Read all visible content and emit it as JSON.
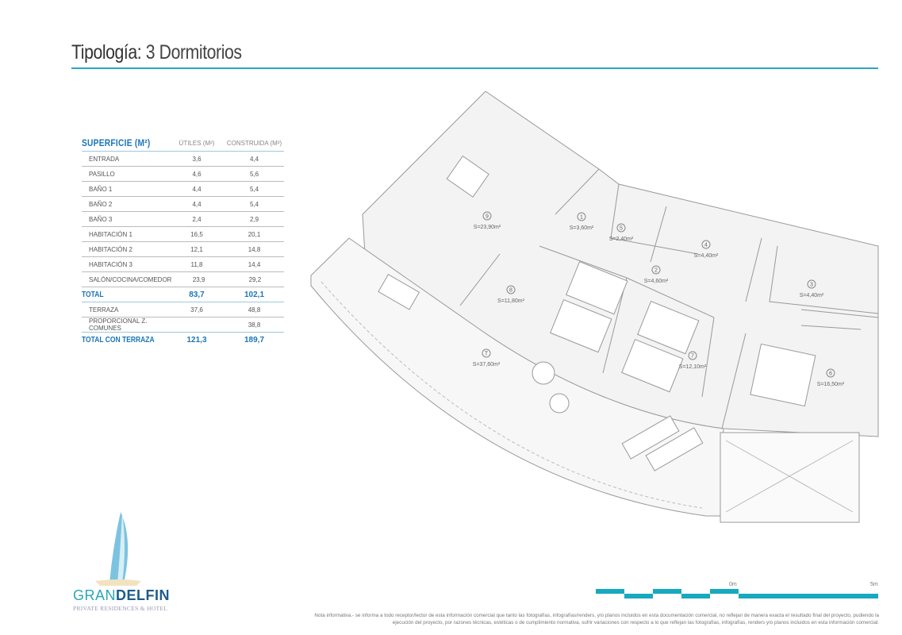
{
  "header": {
    "title_bold": "Tipología:",
    "title_rest": "3 Dormitorios"
  },
  "accent_color": "#2aa6c4",
  "table": {
    "heading": "SUPERFICIE (M²)",
    "col_utiles": "ÚTILES (M²)",
    "col_construida": "CONSTRUIDA (M²)",
    "rows": [
      {
        "label": "ENTRADA",
        "utiles": "3,6",
        "construida": "4,4"
      },
      {
        "label": "PASILLO",
        "utiles": "4,6",
        "construida": "5,6"
      },
      {
        "label": "BAÑO 1",
        "utiles": "4,4",
        "construida": "5,4"
      },
      {
        "label": "BAÑO 2",
        "utiles": "4,4",
        "construida": "5,4"
      },
      {
        "label": "BAÑO 3",
        "utiles": "2,4",
        "construida": "2,9"
      },
      {
        "label": "HABITACIÓN 1",
        "utiles": "16,5",
        "construida": "20,1"
      },
      {
        "label": "HABITACIÓN 2",
        "utiles": "12,1",
        "construida": "14,8"
      },
      {
        "label": "HABITACIÓN 3",
        "utiles": "11,8",
        "construida": "14,4"
      },
      {
        "label": "SALÓN/COCINA/COMEDOR",
        "utiles": "23,9",
        "construida": "29,2"
      }
    ],
    "total": {
      "label": "TOTAL",
      "utiles": "83,7",
      "construida": "102,1"
    },
    "extra_rows": [
      {
        "label": "TERRAZA",
        "utiles": "37,6",
        "construida": "48,8"
      },
      {
        "label": "PROPORCIONAL Z. COMUNES",
        "utiles": "",
        "construida": "38,8"
      }
    ],
    "grand_total": {
      "label": "TOTAL CON TERRAZA",
      "utiles": "121,3",
      "construida": "189,7"
    }
  },
  "plan": {
    "rooms": [
      {
        "num": "9",
        "area": "S=23,90m²"
      },
      {
        "num": "1",
        "area": "S=3,60m²"
      },
      {
        "num": "5",
        "area": "S=2,40m²"
      },
      {
        "num": "4",
        "area": "S=4,40m²"
      },
      {
        "num": "2",
        "area": "S=4,60m²"
      },
      {
        "num": "3",
        "area": "S=4,40m²"
      },
      {
        "num": "8",
        "area": "S=11,80m²"
      },
      {
        "num": "7",
        "area": "S=12,10m²"
      },
      {
        "num": "6",
        "area": "S=16,50m²"
      },
      {
        "num": "T",
        "area": "S=37,60m²"
      }
    ]
  },
  "scale": {
    "start": "0m",
    "end": "5m"
  },
  "logo": {
    "brand_a": "GRAN",
    "brand_b": "DELFIN",
    "tagline": "PRIVATE RESIDENCES & HOTEL"
  },
  "note": "Nota informativa.- se informa a todo receptor/lector de esta información comercial que tanto las fotografías, infografías/renders, y/o planos incluidos en esta documentación comercial, no reflejan de manera exacta el resultado final del proyecto, pudiendo la ejecución del proyecto, por razones técnicas, estéticas o de cumplimiento normativa, sufrir variaciones con respecto a lo que reflejan las fotografías, infografías, renders y/o planos incluidos en esta información comercial."
}
